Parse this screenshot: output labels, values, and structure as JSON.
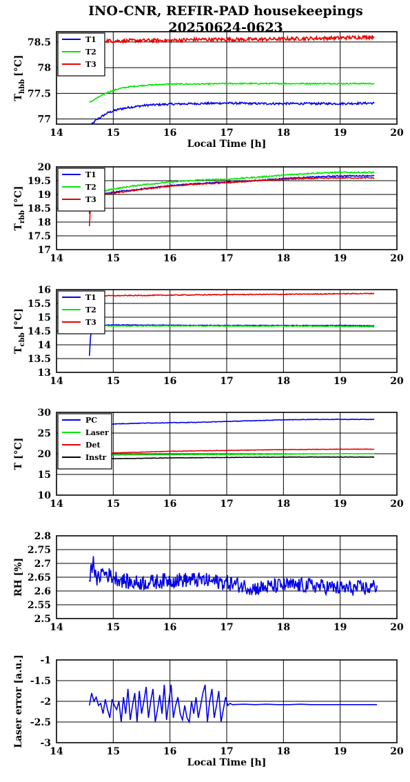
{
  "title": {
    "line1": "INO-CNR, REFIR-PAD housekeepings",
    "line2": "20250624-0623"
  },
  "colors": {
    "blue": "#0000e6",
    "green": "#00e600",
    "red": "#e60000",
    "black": "#000000"
  },
  "chart_data": [
    {
      "type": "line",
      "xlabel": "Local Time [h]",
      "ylabel": "T_hbb [°C]",
      "ylabel_main": "T",
      "ylabel_sub": "hbb",
      "ylabel_unit": "[°C]",
      "xlim": [
        14,
        20
      ],
      "ylim": [
        76.9,
        78.7
      ],
      "xticks": [
        14,
        15,
        16,
        17,
        18,
        19,
        20
      ],
      "yticks": [
        77,
        77.5,
        78,
        78.5
      ],
      "ytick_labels": [
        "77",
        "77.5",
        "78",
        "78.5"
      ],
      "grid": true,
      "legend": "top-left",
      "series": [
        {
          "name": "T1",
          "color": "#0000e6",
          "noise": 0.02,
          "x": [
            14.58,
            14.7,
            14.9,
            15.1,
            15.3,
            15.6,
            16.0,
            16.5,
            17.0,
            17.5,
            18.0,
            18.5,
            19.0,
            19.6
          ],
          "y": [
            76.85,
            76.98,
            77.12,
            77.19,
            77.23,
            77.27,
            77.29,
            77.3,
            77.31,
            77.3,
            77.3,
            77.3,
            77.3,
            77.31
          ]
        },
        {
          "name": "T2",
          "color": "#00e600",
          "noise": 0.012,
          "x": [
            14.58,
            14.7,
            14.9,
            15.1,
            15.3,
            15.6,
            16.0,
            16.5,
            17.0,
            17.5,
            18.0,
            18.5,
            19.0,
            19.6
          ],
          "y": [
            77.32,
            77.4,
            77.52,
            77.59,
            77.63,
            77.66,
            77.68,
            77.68,
            77.69,
            77.69,
            77.69,
            77.69,
            77.69,
            77.69
          ]
        },
        {
          "name": "T3",
          "color": "#e60000",
          "noise": 0.035,
          "x": [
            14.58,
            14.8,
            15.0,
            15.5,
            16.0,
            16.5,
            17.0,
            17.5,
            18.0,
            18.5,
            19.0,
            19.6
          ],
          "y": [
            78.5,
            78.53,
            78.52,
            78.53,
            78.53,
            78.55,
            78.55,
            78.55,
            78.56,
            78.57,
            78.58,
            78.6
          ]
        }
      ]
    },
    {
      "type": "line",
      "xlabel": "",
      "ylabel": "T_rbb [°C]",
      "ylabel_main": "T",
      "ylabel_sub": "rbb",
      "ylabel_unit": "[°C]",
      "xlim": [
        14,
        20
      ],
      "ylim": [
        17,
        20
      ],
      "xticks": [
        14,
        15,
        16,
        17,
        18,
        19,
        20
      ],
      "yticks": [
        17,
        17.5,
        18,
        18.5,
        19,
        19.5,
        20
      ],
      "ytick_labels": [
        "17",
        "17.5",
        "18",
        "18.5",
        "19",
        "19.5",
        "20"
      ],
      "grid": true,
      "legend": "top-left",
      "series": [
        {
          "name": "T1",
          "color": "#0000e6",
          "noise": 0.02,
          "x": [
            14.58,
            14.6,
            14.65,
            14.8,
            15.0,
            15.5,
            16.0,
            16.5,
            17.0,
            17.5,
            18.0,
            18.5,
            19.0,
            19.6
          ],
          "y": [
            18.3,
            18.75,
            18.95,
            19.0,
            19.08,
            19.2,
            19.32,
            19.4,
            19.45,
            19.5,
            19.58,
            19.63,
            19.67,
            19.68
          ]
        },
        {
          "name": "T2",
          "color": "#00e600",
          "noise": 0.025,
          "x": [
            14.58,
            14.6,
            14.65,
            14.8,
            15.0,
            15.5,
            16.0,
            16.5,
            17.0,
            17.5,
            18.0,
            18.5,
            19.0,
            19.6
          ],
          "y": [
            18.4,
            18.85,
            19.03,
            19.1,
            19.2,
            19.35,
            19.45,
            19.52,
            19.55,
            19.62,
            19.7,
            19.77,
            19.8,
            19.8
          ]
        },
        {
          "name": "T3",
          "color": "#e60000",
          "noise": 0.02,
          "x": [
            14.58,
            14.6,
            14.65,
            14.8,
            15.0,
            15.5,
            16.0,
            16.5,
            17.0,
            17.5,
            18.0,
            18.5,
            19.0,
            19.6
          ],
          "y": [
            17.85,
            18.7,
            18.95,
            19.0,
            19.05,
            19.18,
            19.3,
            19.38,
            19.42,
            19.5,
            19.55,
            19.58,
            19.6,
            19.6
          ]
        }
      ]
    },
    {
      "type": "line",
      "xlabel": "",
      "ylabel": "T_cbb [°C]",
      "ylabel_main": "T",
      "ylabel_sub": "cbb",
      "ylabel_unit": "[°C]",
      "xlim": [
        14,
        20
      ],
      "ylim": [
        13,
        16
      ],
      "xticks": [
        14,
        15,
        16,
        17,
        18,
        19,
        20
      ],
      "yticks": [
        13,
        13.5,
        14,
        14.5,
        15,
        15.5,
        16
      ],
      "ytick_labels": [
        "13",
        "13.5",
        "14",
        "14.5",
        "15",
        "15.5",
        "16"
      ],
      "grid": true,
      "legend": "top-left",
      "series": [
        {
          "name": "T1",
          "color": "#0000e6",
          "noise": 0.012,
          "x": [
            14.58,
            14.6,
            14.63,
            14.7,
            15.0,
            16.0,
            17.0,
            18.0,
            19.0,
            19.6
          ],
          "y": [
            13.6,
            14.3,
            14.62,
            14.7,
            14.72,
            14.71,
            14.7,
            14.7,
            14.7,
            14.69
          ]
        },
        {
          "name": "T2",
          "color": "#00e600",
          "noise": 0.015,
          "x": [
            14.58,
            14.7,
            15.0,
            16.0,
            17.0,
            18.0,
            19.0,
            19.6
          ],
          "y": [
            14.68,
            14.7,
            14.68,
            14.69,
            14.68,
            14.68,
            14.67,
            14.66
          ]
        },
        {
          "name": "T3",
          "color": "#e60000",
          "noise": 0.015,
          "x": [
            14.58,
            14.7,
            15.0,
            16.0,
            17.0,
            18.0,
            19.0,
            19.6
          ],
          "y": [
            15.76,
            15.78,
            15.78,
            15.8,
            15.82,
            15.83,
            15.85,
            15.86
          ]
        }
      ]
    },
    {
      "type": "line",
      "xlabel": "",
      "ylabel": "T [°C]",
      "ylabel_main": "T [°C]",
      "ylabel_sub": "",
      "ylabel_unit": "",
      "xlim": [
        14,
        20
      ],
      "ylim": [
        10,
        30
      ],
      "xticks": [
        14,
        15,
        16,
        17,
        18,
        19,
        20
      ],
      "yticks": [
        10,
        15,
        20,
        25,
        30
      ],
      "ytick_labels": [
        "10",
        "15",
        "20",
        "25",
        "30"
      ],
      "grid": true,
      "legend": "top-left",
      "series": [
        {
          "name": "PC",
          "color": "#0000e6",
          "noise": 0.06,
          "x": [
            14.58,
            15.0,
            15.5,
            16.0,
            16.5,
            17.0,
            17.5,
            18.0,
            18.5,
            19.0,
            19.6
          ],
          "y": [
            26.9,
            27.2,
            27.4,
            27.5,
            27.6,
            27.8,
            28.0,
            28.2,
            28.3,
            28.3,
            28.3
          ]
        },
        {
          "name": "Laser",
          "color": "#00e600",
          "noise": 0.05,
          "x": [
            14.58,
            15.0,
            16.0,
            17.0,
            18.0,
            19.0,
            19.6
          ],
          "y": [
            19.6,
            19.7,
            19.8,
            19.85,
            19.9,
            20.0,
            20.0
          ]
        },
        {
          "name": "Det",
          "color": "#e60000",
          "noise": 0.05,
          "x": [
            14.58,
            15.0,
            15.5,
            16.0,
            17.0,
            18.0,
            19.0,
            19.6
          ],
          "y": [
            20.0,
            20.2,
            20.4,
            20.6,
            20.8,
            21.0,
            21.1,
            21.1
          ]
        },
        {
          "name": "Instr",
          "color": "#000000",
          "noise": 0.05,
          "x": [
            14.58,
            15.0,
            16.0,
            17.0,
            18.0,
            19.0,
            19.6
          ],
          "y": [
            18.5,
            18.8,
            19.0,
            19.1,
            19.2,
            19.2,
            19.2
          ]
        }
      ]
    },
    {
      "type": "line",
      "xlabel": "",
      "ylabel": "RH [%]",
      "ylabel_main": "RH [%]",
      "ylabel_sub": "",
      "ylabel_unit": "",
      "xlim": [
        14,
        20
      ],
      "ylim": [
        2.5,
        2.8
      ],
      "xticks": [
        14,
        15,
        16,
        17,
        18,
        19,
        20
      ],
      "yticks": [
        2.5,
        2.55,
        2.6,
        2.65,
        2.7,
        2.75,
        2.8
      ],
      "ytick_labels": [
        "2.5",
        "2.55",
        "2.6",
        "2.65",
        "2.7",
        "2.75",
        "2.8"
      ],
      "grid": true,
      "legend": "none",
      "series": [
        {
          "name": "",
          "color": "#0000e6",
          "noise": 0.028,
          "x": [
            14.58,
            14.65,
            14.7,
            14.8,
            15.0,
            15.3,
            15.6,
            16.0,
            16.5,
            17.0,
            17.5,
            18.0,
            18.5,
            19.0,
            19.5,
            19.65
          ],
          "y": [
            2.64,
            2.72,
            2.63,
            2.67,
            2.65,
            2.63,
            2.63,
            2.64,
            2.64,
            2.63,
            2.61,
            2.62,
            2.62,
            2.61,
            2.61,
            2.62
          ]
        }
      ]
    },
    {
      "type": "line",
      "xlabel": "Local Time [h]",
      "ylabel": "Laser error [a.u.]",
      "ylabel_main": "Laser error [a.u.]",
      "ylabel_sub": "",
      "ylabel_unit": "",
      "xlim": [
        14,
        20
      ],
      "ylim": [
        -3,
        -1
      ],
      "xticks": [
        14,
        15,
        16,
        17,
        18,
        19,
        20
      ],
      "yticks": [
        -3,
        -2.5,
        -2,
        -1.5,
        -1
      ],
      "ytick_labels": [
        "-3",
        "-2.5",
        "-2",
        "-1.5",
        "-1"
      ],
      "grid": true,
      "legend": "none",
      "series": [
        {
          "name": "",
          "color": "#0000e6",
          "noise": 0.0,
          "x": [
            14.58,
            14.62,
            14.66,
            14.7,
            14.74,
            14.78,
            14.82,
            14.86,
            14.9,
            14.94,
            14.98,
            15.02,
            15.06,
            15.1,
            15.14,
            15.18,
            15.22,
            15.26,
            15.3,
            15.34,
            15.38,
            15.42,
            15.46,
            15.5,
            15.54,
            15.58,
            15.62,
            15.66,
            15.7,
            15.74,
            15.78,
            15.82,
            15.86,
            15.9,
            15.94,
            15.98,
            16.02,
            16.06,
            16.1,
            16.14,
            16.18,
            16.22,
            16.26,
            16.3,
            16.34,
            16.38,
            16.42,
            16.46,
            16.5,
            16.54,
            16.58,
            16.62,
            16.66,
            16.7,
            16.74,
            16.78,
            16.82,
            16.86,
            16.9,
            16.94,
            16.98,
            17.02,
            17.06,
            17.1,
            17.3,
            17.5,
            17.7,
            17.9,
            18.1,
            18.3,
            18.5,
            18.7,
            18.9,
            19.1,
            19.3,
            19.5,
            19.65
          ],
          "y": [
            -2.1,
            -1.8,
            -2.0,
            -1.9,
            -2.1,
            -2.05,
            -2.3,
            -1.95,
            -2.2,
            -2.4,
            -1.95,
            -2.1,
            -2.2,
            -2.0,
            -2.5,
            -1.9,
            -2.3,
            -1.7,
            -2.45,
            -2.1,
            -1.8,
            -2.5,
            -1.75,
            -2.3,
            -2.0,
            -1.65,
            -2.4,
            -2.0,
            -1.7,
            -2.5,
            -2.2,
            -1.85,
            -2.3,
            -1.6,
            -2.45,
            -2.0,
            -1.6,
            -2.4,
            -2.1,
            -1.9,
            -2.3,
            -2.45,
            -2.1,
            -2.4,
            -2.5,
            -2.0,
            -2.3,
            -1.9,
            -2.4,
            -2.1,
            -1.8,
            -1.6,
            -2.5,
            -2.0,
            -1.7,
            -2.4,
            -2.1,
            -1.75,
            -2.5,
            -2.2,
            -1.9,
            -2.1,
            -2.05,
            -2.08,
            -2.07,
            -2.08,
            -2.07,
            -2.08,
            -2.08,
            -2.07,
            -2.08,
            -2.08,
            -2.08,
            -2.08,
            -2.08,
            -2.08,
            -2.08
          ]
        }
      ]
    }
  ]
}
